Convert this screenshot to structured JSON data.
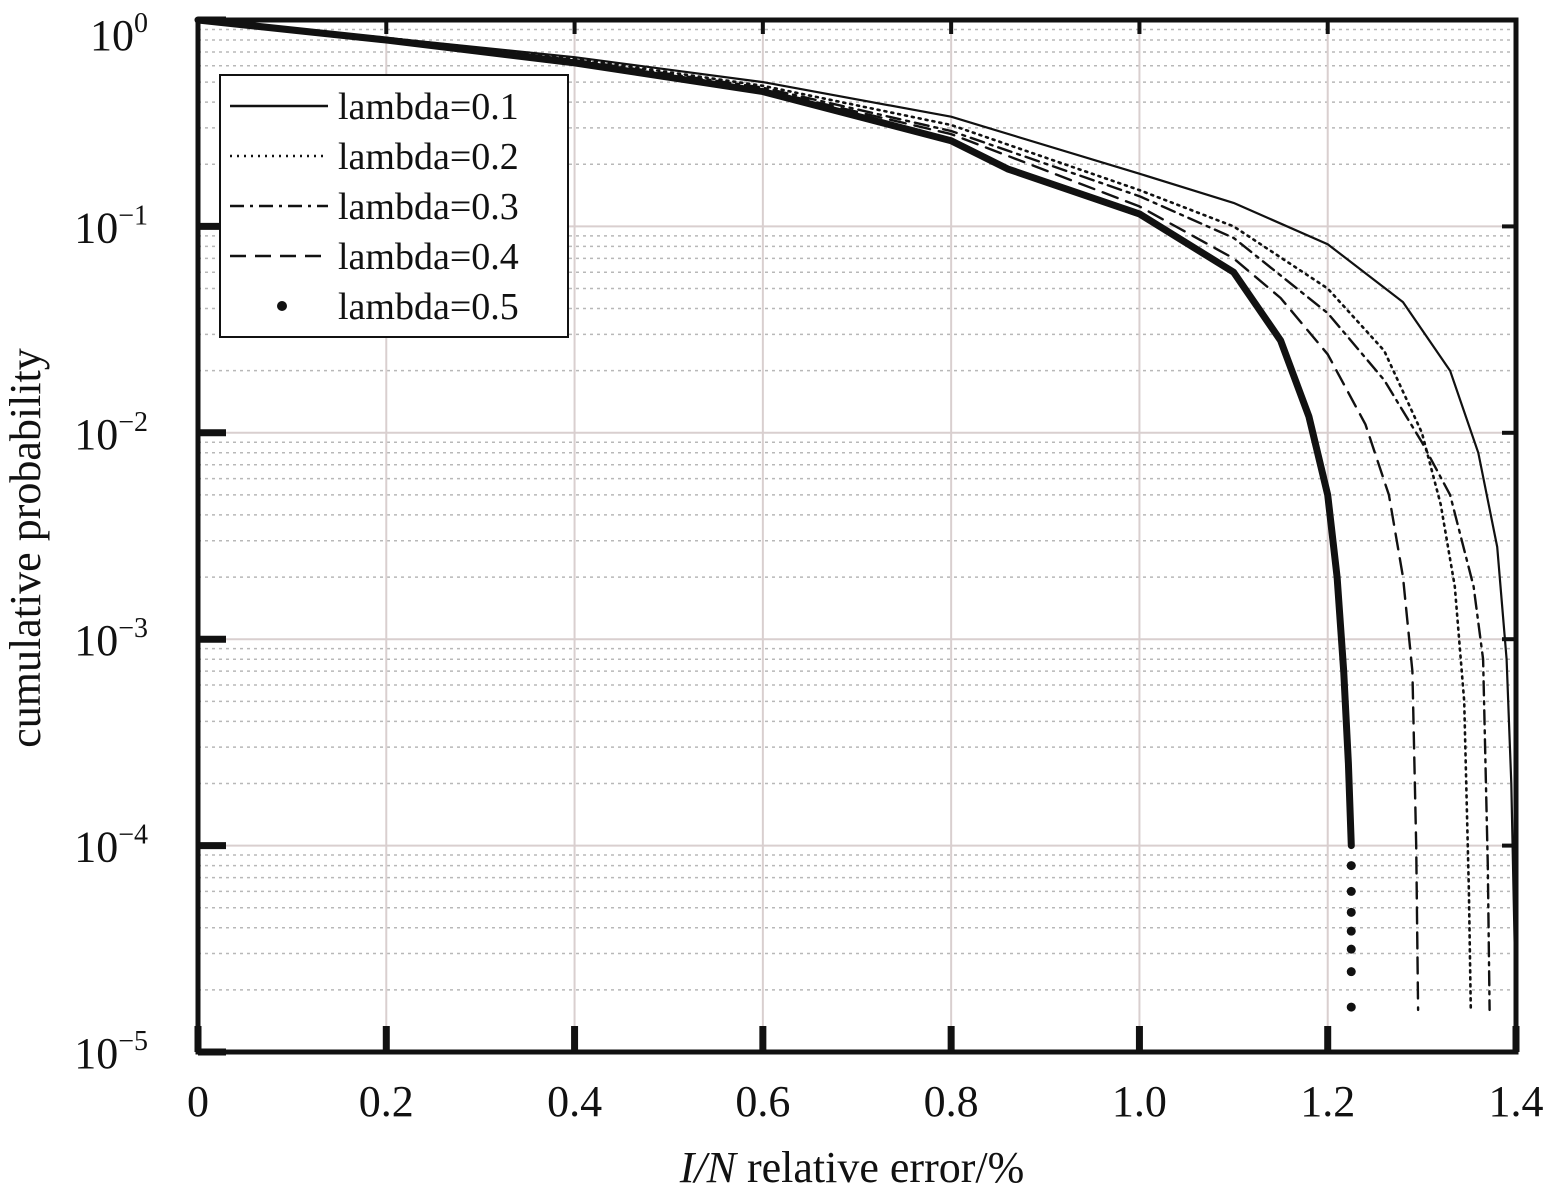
{
  "chart_data": {
    "type": "line",
    "title": "",
    "xlabel": {
      "italic_part": "I/N",
      "rest": " relative error/%"
    },
    "ylabel": "cumulative probability",
    "xlim": [
      0,
      1.4
    ],
    "ylim": [
      1e-05,
      1
    ],
    "yscale": "log",
    "grid": true,
    "legend_position": "top-left",
    "x_ticks": [
      {
        "value": 0,
        "label": "0"
      },
      {
        "value": 0.2,
        "label": "0.2"
      },
      {
        "value": 0.4,
        "label": "0.4"
      },
      {
        "value": 0.6,
        "label": "0.6"
      },
      {
        "value": 0.8,
        "label": "0.8"
      },
      {
        "value": 1.0,
        "label": "1.0"
      },
      {
        "value": 1.2,
        "label": "1.2"
      },
      {
        "value": 1.4,
        "label": "1.4"
      }
    ],
    "y_ticks": [
      {
        "value": 1,
        "base": "10",
        "exp": "0"
      },
      {
        "value": 0.1,
        "base": "10",
        "exp": "−1"
      },
      {
        "value": 0.01,
        "base": "10",
        "exp": "−2"
      },
      {
        "value": 0.001,
        "base": "10",
        "exp": "−3"
      },
      {
        "value": 0.0001,
        "base": "10",
        "exp": "−4"
      },
      {
        "value": 1e-05,
        "base": "10",
        "exp": "−5"
      }
    ],
    "series": [
      {
        "name": "lambda=0.1",
        "style": "solid",
        "x": [
          0,
          0.2,
          0.4,
          0.6,
          0.8,
          1.0,
          1.1,
          1.2,
          1.28,
          1.33,
          1.36,
          1.38,
          1.39,
          1.395,
          1.4
        ],
        "y": [
          1,
          0.82,
          0.66,
          0.5,
          0.34,
          0.18,
          0.13,
          0.082,
          0.043,
          0.02,
          0.008,
          0.0028,
          0.0008,
          0.0002,
          1.6e-05
        ]
      },
      {
        "name": "lambda=0.2",
        "style": "dotted",
        "x": [
          0,
          0.2,
          0.4,
          0.6,
          0.8,
          1.0,
          1.1,
          1.2,
          1.26,
          1.3,
          1.32,
          1.335,
          1.345,
          1.35,
          1.352
        ],
        "y": [
          1,
          0.82,
          0.65,
          0.48,
          0.31,
          0.15,
          0.1,
          0.05,
          0.025,
          0.01,
          0.0045,
          0.0018,
          0.0005,
          6e-05,
          1.6e-05
        ]
      },
      {
        "name": "lambda=0.3",
        "style": "dashdot",
        "x": [
          0,
          0.2,
          0.4,
          0.6,
          0.8,
          1.0,
          1.1,
          1.2,
          1.26,
          1.3,
          1.33,
          1.355,
          1.365,
          1.37,
          1.372
        ],
        "y": [
          1,
          0.81,
          0.64,
          0.47,
          0.29,
          0.14,
          0.088,
          0.038,
          0.018,
          0.009,
          0.005,
          0.0018,
          0.0008,
          8e-05,
          1.6e-05
        ]
      },
      {
        "name": "lambda=0.4",
        "style": "dashed",
        "x": [
          0,
          0.2,
          0.4,
          0.6,
          0.8,
          1.0,
          1.1,
          1.15,
          1.2,
          1.24,
          1.265,
          1.28,
          1.29,
          1.294,
          1.296
        ],
        "y": [
          1,
          0.81,
          0.63,
          0.46,
          0.28,
          0.125,
          0.07,
          0.045,
          0.024,
          0.011,
          0.005,
          0.002,
          0.0007,
          0.0001,
          1.6e-05
        ]
      },
      {
        "name": "lambda=0.5",
        "style": "dots",
        "x": [
          0,
          0.2,
          0.4,
          0.6,
          0.8,
          0.86,
          1.0,
          1.1,
          1.15,
          1.18,
          1.2,
          1.21,
          1.217,
          1.222,
          1.225
        ],
        "y": [
          1,
          0.8,
          0.62,
          0.45,
          0.26,
          0.19,
          0.115,
          0.06,
          0.028,
          0.012,
          0.005,
          0.002,
          0.0007,
          0.00025,
          0.0001
        ],
        "tail_dots_x": [
          1.225,
          1.225,
          1.225,
          1.225,
          1.225,
          1.225,
          1.225
        ],
        "tail_dots_y": [
          8e-05,
          6e-05,
          4.75e-05,
          3.85e-05,
          3.15e-05,
          2.45e-05,
          1.65e-05
        ]
      }
    ]
  }
}
